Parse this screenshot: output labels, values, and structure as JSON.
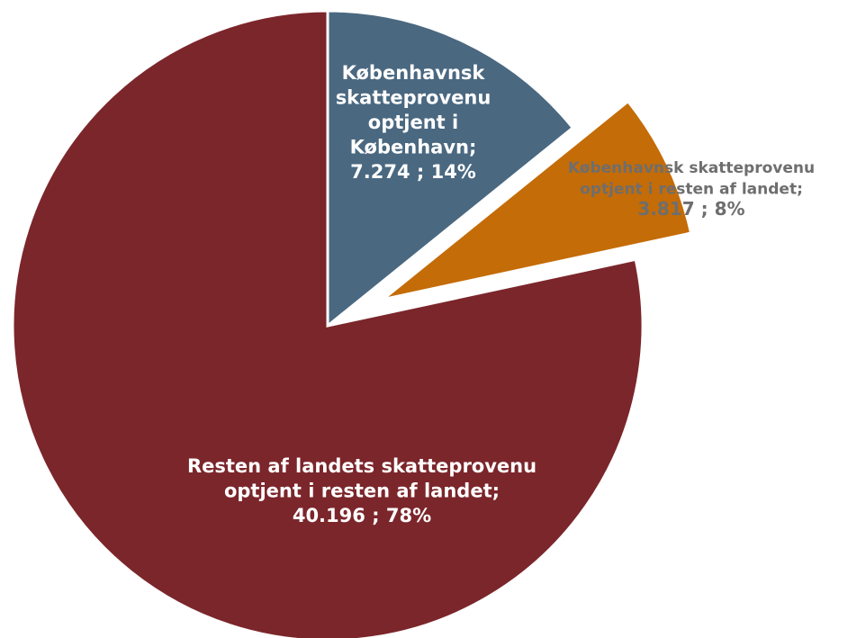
{
  "chart_data": {
    "type": "pie",
    "title": "",
    "slices": [
      {
        "label_lines": [
          "Københavnsk",
          "skatteprovenu",
          "optjent i",
          "København;",
          "7.274 ; 14%"
        ],
        "value": 7274,
        "percent": 14,
        "color": "#4a6880",
        "label_color": "#ffffff",
        "exploded": false
      },
      {
        "label_lines": [
          "Københavnsk skatteprovenu",
          "optjent i resten af landet;",
          "3.817 ; 8%"
        ],
        "value": 3817,
        "percent": 8,
        "color": "#c46c07",
        "label_color": "#6e6e6e",
        "exploded": true
      },
      {
        "label_lines": [
          "Resten af landets skatteprovenu",
          "optjent i resten af landet;",
          "40.196 ; 78%"
        ],
        "value": 40196,
        "percent": 78,
        "color": "#7b262b",
        "label_color": "#ffffff",
        "exploded": false
      }
    ]
  }
}
